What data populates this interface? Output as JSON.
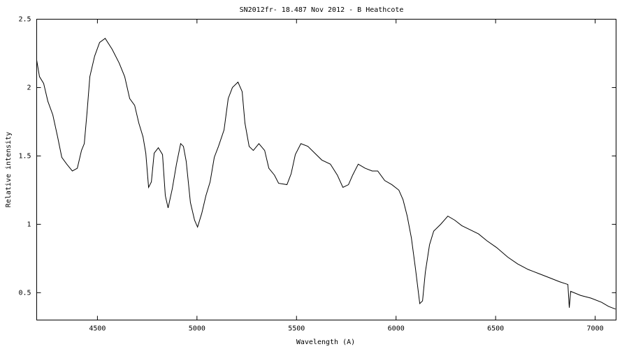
{
  "chart_data": {
    "type": "line",
    "title": "SN2012fr- 18.487 Nov 2012 - B Heathcote",
    "xlabel": "Wavelength (A)",
    "ylabel": "Relative intensity",
    "color": "#000000",
    "grid": false,
    "xlim": [
      4195,
      7105
    ],
    "ylim": [
      0.3,
      2.5
    ],
    "xticks": [
      4500,
      5000,
      5500,
      6000,
      6500,
      7000
    ],
    "yticks": [
      0.5,
      1,
      1.5,
      2,
      2.5
    ],
    "x": [
      4195,
      4209,
      4230,
      4251,
      4276,
      4300,
      4321,
      4346,
      4374,
      4399,
      4420,
      4434,
      4448,
      4462,
      4486,
      4511,
      4539,
      4574,
      4609,
      4637,
      4662,
      4687,
      4708,
      4729,
      4743,
      4757,
      4771,
      4785,
      4806,
      4827,
      4841,
      4855,
      4876,
      4897,
      4918,
      4932,
      4946,
      4967,
      4988,
      5003,
      5024,
      5045,
      5066,
      5087,
      5108,
      5136,
      5157,
      5178,
      5206,
      5227,
      5241,
      5262,
      5283,
      5311,
      5340,
      5361,
      5389,
      5410,
      5452,
      5473,
      5494,
      5522,
      5557,
      5592,
      5627,
      5670,
      5705,
      5733,
      5761,
      5782,
      5810,
      5845,
      5880,
      5908,
      5943,
      5979,
      6014,
      6035,
      6056,
      6077,
      6098,
      6119,
      6133,
      6147,
      6168,
      6189,
      6224,
      6260,
      6295,
      6330,
      6372,
      6414,
      6456,
      6505,
      6561,
      6611,
      6663,
      6716,
      6769,
      6821,
      6863,
      6870,
      6877,
      6927,
      6979,
      7032,
      7067,
      7102
    ],
    "values": [
      2.2,
      2.08,
      2.03,
      1.9,
      1.8,
      1.64,
      1.49,
      1.44,
      1.39,
      1.41,
      1.54,
      1.59,
      1.82,
      2.08,
      2.23,
      2.33,
      2.36,
      2.28,
      2.18,
      2.08,
      1.92,
      1.87,
      1.74,
      1.64,
      1.52,
      1.27,
      1.31,
      1.52,
      1.56,
      1.51,
      1.21,
      1.12,
      1.26,
      1.44,
      1.59,
      1.57,
      1.46,
      1.16,
      1.03,
      0.98,
      1.08,
      1.21,
      1.31,
      1.49,
      1.57,
      1.69,
      1.92,
      2.0,
      2.04,
      1.97,
      1.74,
      1.57,
      1.54,
      1.59,
      1.54,
      1.41,
      1.36,
      1.3,
      1.29,
      1.37,
      1.51,
      1.59,
      1.57,
      1.52,
      1.47,
      1.44,
      1.36,
      1.27,
      1.29,
      1.36,
      1.44,
      1.41,
      1.39,
      1.39,
      1.32,
      1.29,
      1.25,
      1.18,
      1.06,
      0.9,
      0.67,
      0.42,
      0.44,
      0.65,
      0.85,
      0.95,
      1.0,
      1.06,
      1.03,
      0.99,
      0.96,
      0.93,
      0.88,
      0.83,
      0.76,
      0.71,
      0.67,
      0.64,
      0.61,
      0.58,
      0.56,
      0.39,
      0.51,
      0.48,
      0.46,
      0.43,
      0.4,
      0.38
    ]
  }
}
